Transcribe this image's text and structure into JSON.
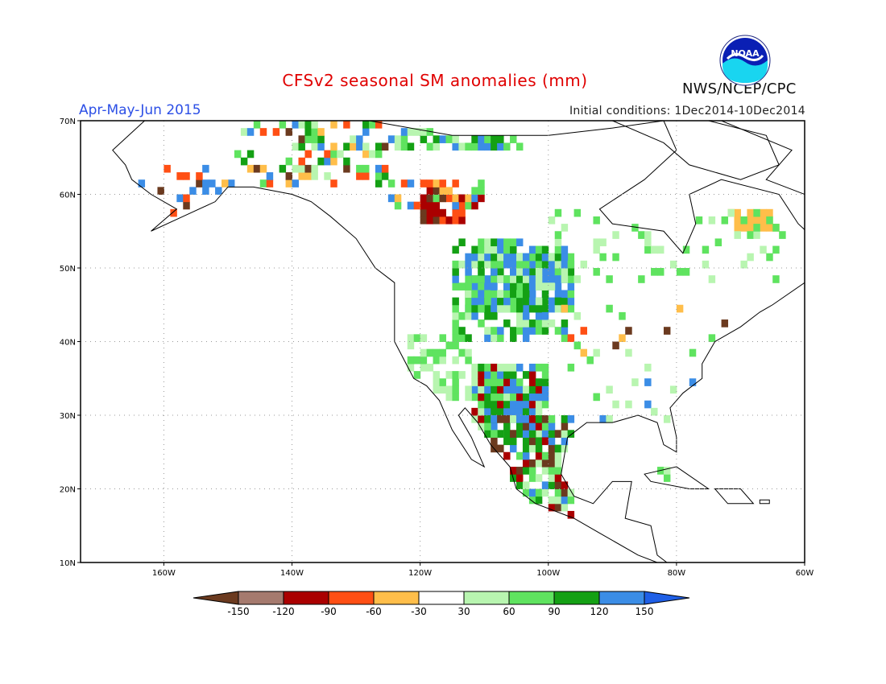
{
  "title": "CFSv2 seasonal SM anomalies (mm)",
  "period": "Apr-May-Jun 2015",
  "initial_conditions": "Initial conditions: 1Dec2014-10Dec2014",
  "organization": "NWS/NCEP/CPC",
  "logo_text": "NOAA",
  "map": {
    "lon_range": [
      -173,
      -60
    ],
    "lat_range": [
      10,
      70
    ],
    "lat_ticks": [
      "10N",
      "20N",
      "30N",
      "40N",
      "50N",
      "60N",
      "70N"
    ],
    "lon_ticks": [
      "160W",
      "140W",
      "120W",
      "100W",
      "80W",
      "60W"
    ],
    "grid": true
  },
  "colorbar": {
    "labels": [
      "-150",
      "-120",
      "-90",
      "-60",
      "-30",
      "30",
      "60",
      "90",
      "120",
      "150"
    ],
    "colors": [
      "#6b3a1f",
      "#a57a6e",
      "#aa0000",
      "#ff4f14",
      "#ffbe4a",
      "#ffffff",
      "#b8f5b0",
      "#5fe35f",
      "#14a014",
      "#3b8de6",
      "#1f5fe6"
    ]
  },
  "anomaly_regions": [
    {
      "name": "northern-plains-wet",
      "value": "120 to 150"
    },
    {
      "name": "southwest-mexico-wet",
      "value": "60 to 150"
    },
    {
      "name": "yukon-dry",
      "value": "-120 to -60"
    },
    {
      "name": "labrador-dry",
      "value": "-60 to -30"
    }
  ]
}
